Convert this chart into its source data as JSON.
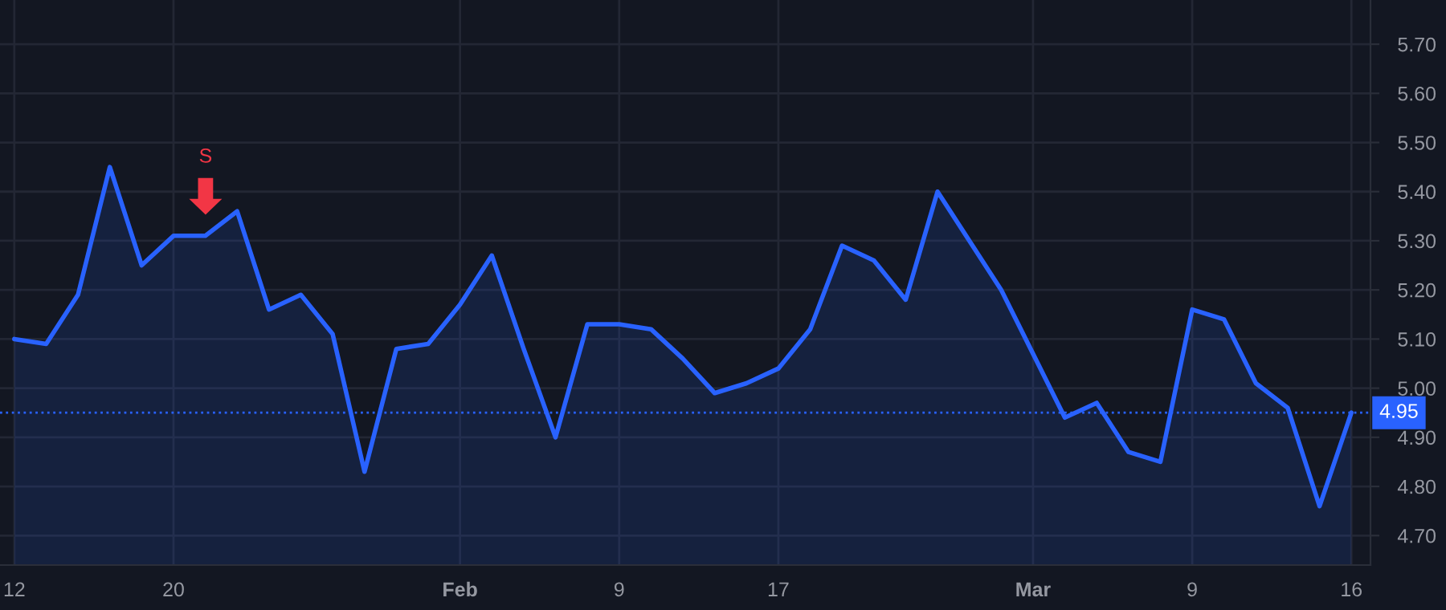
{
  "chart_data": {
    "type": "area",
    "categories": [
      "12",
      null,
      null,
      null,
      null,
      "20",
      null,
      null,
      null,
      null,
      null,
      null,
      null,
      null,
      "Feb",
      null,
      null,
      null,
      null,
      "9",
      null,
      null,
      null,
      null,
      "17",
      null,
      null,
      null,
      null,
      null,
      null,
      null,
      "Mar",
      null,
      null,
      null,
      null,
      "9",
      null,
      null,
      null,
      null,
      "16"
    ],
    "series": [
      {
        "color": "#2962ff",
        "values": [
          5.1,
          5.09,
          5.19,
          5.45,
          5.25,
          5.31,
          5.31,
          5.36,
          5.16,
          5.19,
          5.11,
          4.83,
          5.08,
          5.09,
          5.17,
          5.27,
          5.08,
          4.9,
          5.13,
          5.13,
          5.12,
          5.06,
          4.99,
          5.01,
          5.04,
          5.12,
          5.29,
          5.26,
          5.18,
          5.4,
          5.3,
          5.2,
          5.07,
          4.94,
          4.97,
          4.87,
          4.85,
          5.16,
          5.14,
          5.01,
          4.96,
          4.76,
          4.95
        ]
      }
    ],
    "ylim": [
      4.64,
      5.79
    ],
    "yticks": [
      {
        "value": 4.7,
        "label": "4.70"
      },
      {
        "value": 4.8,
        "label": "4.80"
      },
      {
        "value": 4.9,
        "label": "4.90"
      },
      {
        "value": 5.0,
        "label": "5.00"
      },
      {
        "value": 5.1,
        "label": "5.10"
      },
      {
        "value": 5.2,
        "label": "5.20"
      },
      {
        "value": 5.3,
        "label": "5.30"
      },
      {
        "value": 5.4,
        "label": "5.40"
      },
      {
        "value": 5.5,
        "label": "5.50"
      },
      {
        "value": 5.6,
        "label": "5.60"
      },
      {
        "value": 5.7,
        "label": "5.70"
      }
    ],
    "ref_lines": [
      {
        "axis": "y",
        "value": 4.95,
        "label": "4.95",
        "color": "#2962ff",
        "line_style": "dotted"
      }
    ],
    "annotations": [
      "S"
    ],
    "grid": true
  }
}
